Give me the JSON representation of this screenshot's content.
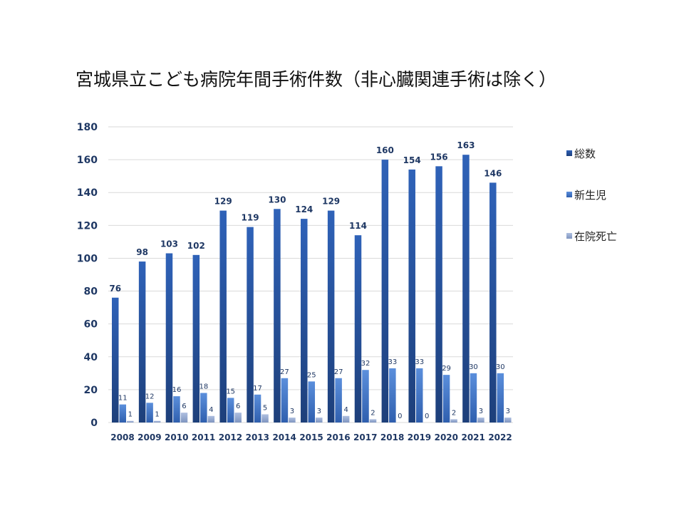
{
  "title": "宮城県立こども病院年間手術件数（非心臓関連手術は除く）",
  "chart_data": {
    "type": "bar",
    "categories": [
      "2008",
      "2009",
      "2010",
      "2011",
      "2012",
      "2013",
      "2014",
      "2015",
      "2016",
      "2017",
      "2018",
      "2019",
      "2020",
      "2021",
      "2022"
    ],
    "series": [
      {
        "name": "総数",
        "color": "#2e5aa8",
        "values": [
          76,
          98,
          103,
          102,
          129,
          119,
          130,
          124,
          129,
          114,
          160,
          154,
          156,
          163,
          146
        ]
      },
      {
        "name": "新生児",
        "color": "#4a7fd0",
        "values": [
          11,
          12,
          16,
          18,
          15,
          17,
          27,
          25,
          27,
          32,
          33,
          33,
          29,
          30,
          30
        ]
      },
      {
        "name": "在院死亡",
        "color": "#9aaed0",
        "values": [
          1,
          1,
          6,
          4,
          6,
          5,
          3,
          3,
          4,
          2,
          0,
          0,
          2,
          3,
          3
        ]
      }
    ],
    "ylim": [
      0,
      180
    ],
    "yticks": [
      0,
      20,
      40,
      60,
      80,
      100,
      120,
      140,
      160,
      180
    ],
    "grid": true,
    "legend_position": "right"
  }
}
